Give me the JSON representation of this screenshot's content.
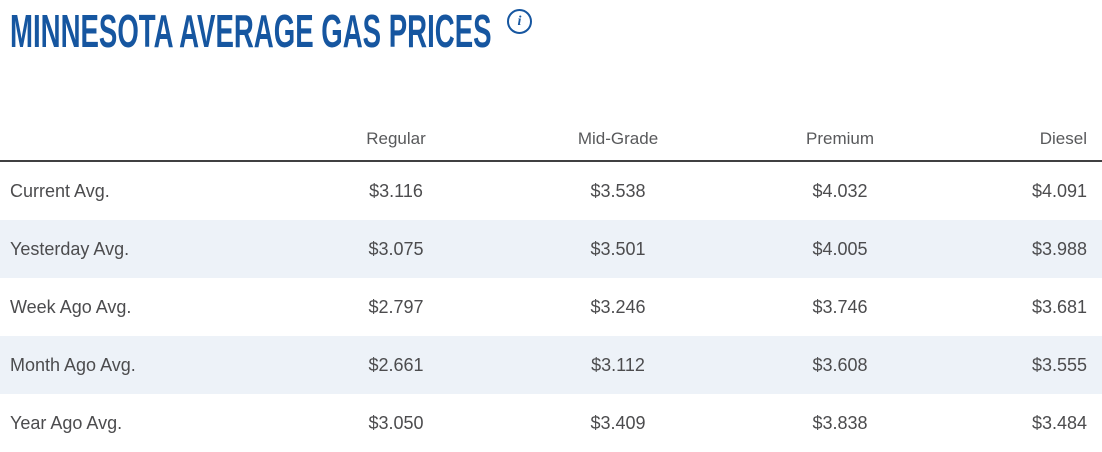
{
  "page": {
    "title": "MINNESOTA AVERAGE GAS PRICES",
    "info_icon_glyph": "i"
  },
  "table": {
    "columns": [
      "Regular",
      "Mid-Grade",
      "Premium",
      "Diesel"
    ],
    "rows": [
      {
        "label": "Current Avg.",
        "values": [
          "$3.116",
          "$3.538",
          "$4.032",
          "$4.091"
        ]
      },
      {
        "label": "Yesterday Avg.",
        "values": [
          "$3.075",
          "$3.501",
          "$4.005",
          "$3.988"
        ]
      },
      {
        "label": "Week Ago Avg.",
        "values": [
          "$2.797",
          "$3.246",
          "$3.746",
          "$3.681"
        ]
      },
      {
        "label": "Month Ago Avg.",
        "values": [
          "$2.661",
          "$3.112",
          "$3.608",
          "$3.555"
        ]
      },
      {
        "label": "Year Ago Avg.",
        "values": [
          "$3.050",
          "$3.409",
          "$3.838",
          "$3.484"
        ]
      }
    ]
  },
  "colors": {
    "title_blue": "#1656A0",
    "divider": "#404041",
    "header_text": "#58595B",
    "body_text": "#4C4C4E",
    "stripe": "#EDF2F8"
  }
}
